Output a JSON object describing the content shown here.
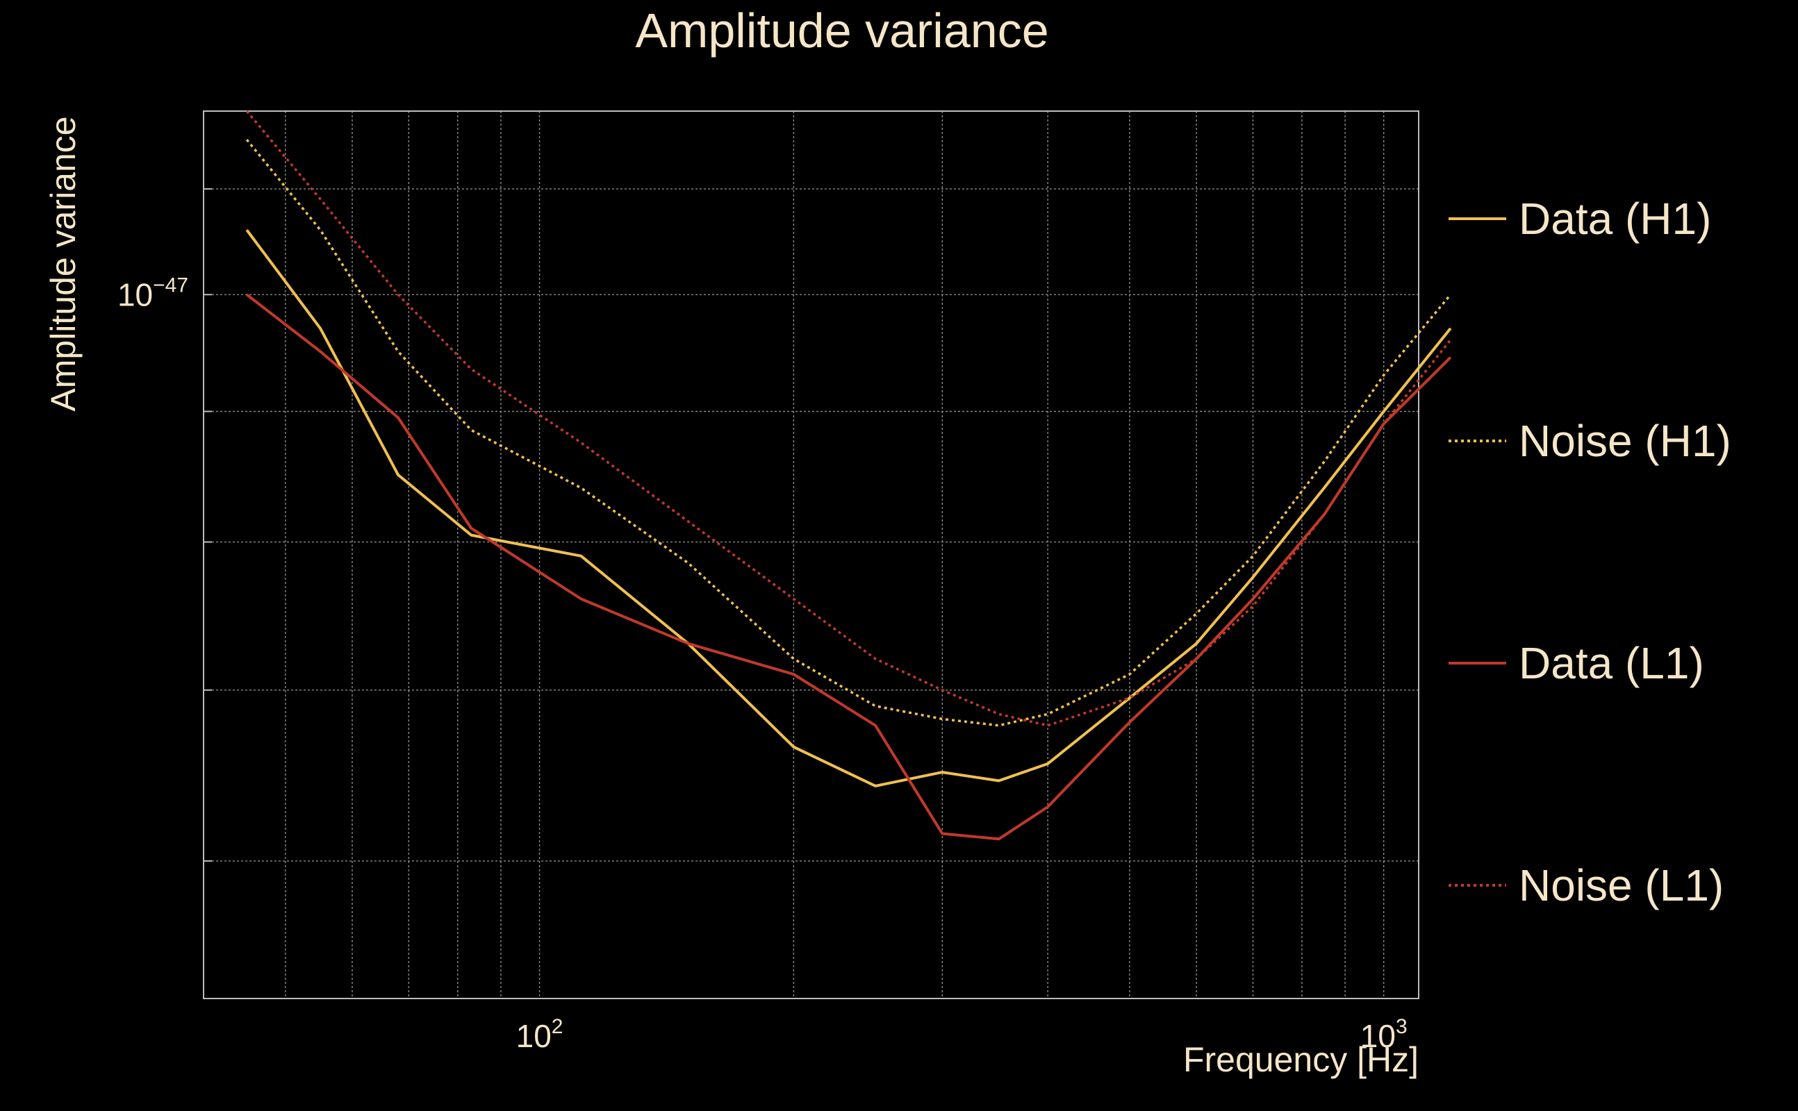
{
  "chart_data": {
    "type": "line",
    "title": "Amplitude variance",
    "xlabel": "Frequency [Hz]",
    "ylabel": "Amplitude variance",
    "xscale": "log",
    "yscale": "log",
    "xlim": [
      40,
      1100
    ],
    "ylim": [
      5.3e-48,
      1.18e-47
    ],
    "x_ticks": [
      {
        "value": 100,
        "base": "10",
        "exp": "2"
      },
      {
        "value": 1000,
        "base": "10",
        "exp": "3"
      }
    ],
    "y_ticks": [
      {
        "value": 1e-47,
        "base": "10",
        "exp": "−47"
      }
    ],
    "grid": true,
    "legend_position": "right",
    "colors": {
      "background": "#000000",
      "text": "#f5e6c8",
      "h1": "#f0c050",
      "l1": "#c0392b"
    },
    "x": [
      45,
      55,
      68,
      83,
      112,
      150,
      200,
      250,
      300,
      350,
      400,
      500,
      600,
      700,
      850,
      1000,
      1200
    ],
    "series": [
      {
        "name": "Data (H1)",
        "color": "#f0c050",
        "style": "solid",
        "values": [
          1.06e-47,
          9.7e-48,
          8.5e-48,
          8.05e-48,
          7.9e-48,
          7.3e-48,
          6.65e-48,
          6.42e-48,
          6.5e-48,
          6.45e-48,
          6.55e-48,
          6.95e-48,
          7.3e-48,
          7.75e-48,
          8.4e-48,
          9e-48,
          9.7e-48
        ]
      },
      {
        "name": "Noise (H1)",
        "color": "#f0c050",
        "style": "dotted",
        "values": [
          1.15e-47,
          1.06e-47,
          9.5e-48,
          8.85e-48,
          8.4e-48,
          7.85e-48,
          7.2e-48,
          6.9e-48,
          6.82e-48,
          6.78e-48,
          6.85e-48,
          7.1e-48,
          7.5e-48,
          7.9e-48,
          8.6e-48,
          9.3e-48,
          1e-47
        ]
      },
      {
        "name": "Data (L1)",
        "color": "#c0392b",
        "style": "solid",
        "values": [
          1e-47,
          9.5e-48,
          8.95e-48,
          8.1e-48,
          7.6e-48,
          7.3e-48,
          7.1e-48,
          6.78e-48,
          6.15e-48,
          6.12e-48,
          6.3e-48,
          6.8e-48,
          7.2e-48,
          7.6e-48,
          8.2e-48,
          8.9e-48,
          9.45e-48
        ]
      },
      {
        "name": "Noise (L1)",
        "color": "#c0392b",
        "style": "dotted",
        "values": [
          1.18e-47,
          1.09e-47,
          1e-47,
          9.35e-48,
          8.75e-48,
          8.15e-48,
          7.6e-48,
          7.2e-48,
          7e-48,
          6.85e-48,
          6.78e-48,
          6.95e-48,
          7.2e-48,
          7.55e-48,
          8.2e-48,
          8.9e-48,
          9.6e-48
        ]
      }
    ]
  }
}
